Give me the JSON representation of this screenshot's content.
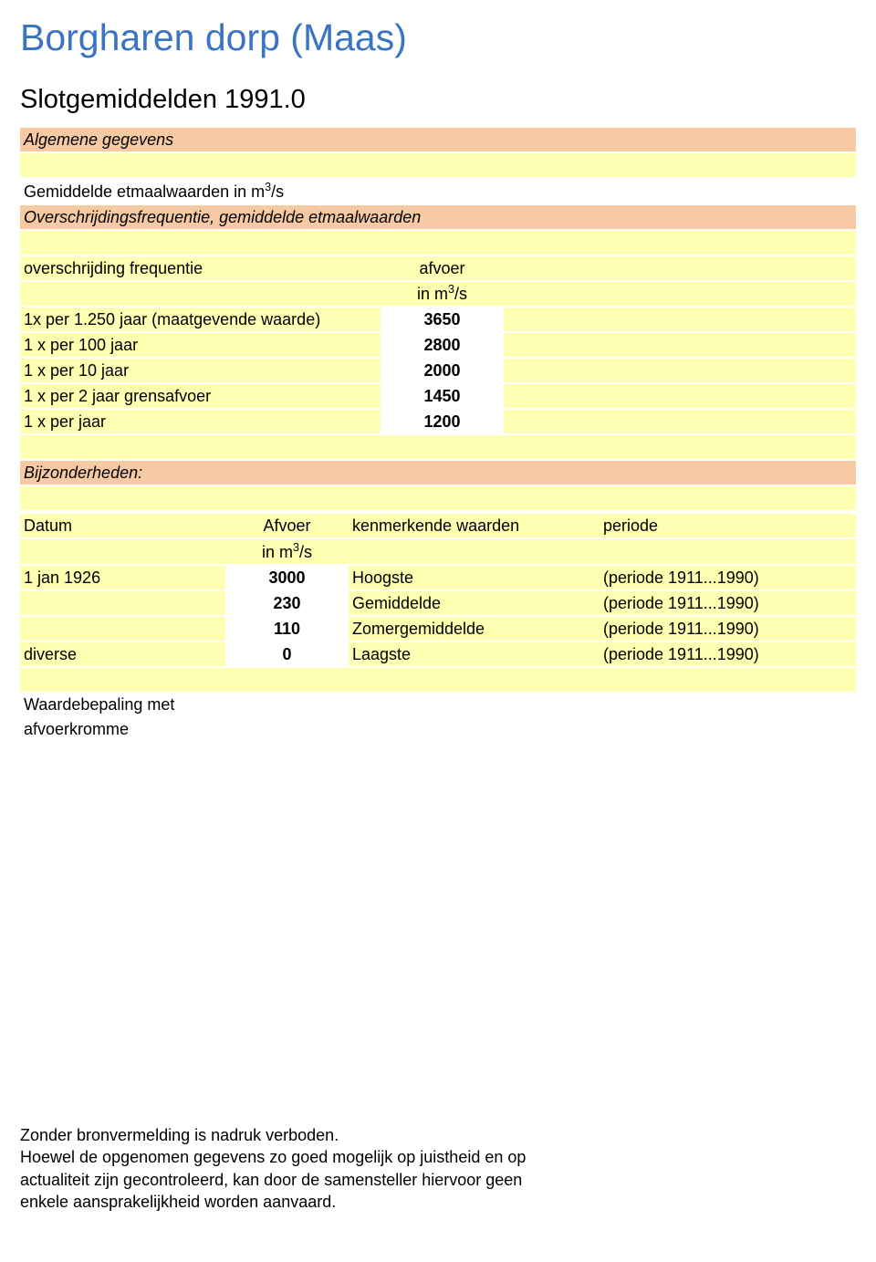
{
  "title": "Borgharen dorp (Maas)",
  "subtitle": "Slotgemiddelden 1991.0",
  "section_general": "Algemene gegevens",
  "line_gemiddelde": "Gemiddelde etmaalwaarden in m",
  "section_overschrijding": "Overschrijdingsfrequentie, gemiddelde etmaalwaarden",
  "freq_header_left": "overschrijding frequentie",
  "freq_header_mid_top": "afvoer",
  "freq_header_mid_bot": "in m",
  "freq_rows": [
    {
      "label": "1x per 1.250 jaar (maatgevende waarde)",
      "value": "3650"
    },
    {
      "label": "1 x per 100 jaar",
      "value": "2800"
    },
    {
      "label": "1 x per 10 jaar",
      "value": "2000"
    },
    {
      "label": "1 x per 2 jaar grensafvoer",
      "value": "1450"
    },
    {
      "label": "1 x per jaar",
      "value": "1200"
    }
  ],
  "section_bijzonder": "Bijzonderheden:",
  "table_header": {
    "c1": "Datum",
    "c2_top": "Afvoer",
    "c2_bot": "in m",
    "c3": "kenmerkende waarden",
    "c4": "periode"
  },
  "table_rows": [
    {
      "c1": "1 jan 1926",
      "c2": "3000",
      "c3": "Hoogste",
      "c4": "(periode 1911...1990)"
    },
    {
      "c1": "",
      "c2": "230",
      "c3": "Gemiddelde",
      "c4": "(periode 1911...1990)"
    },
    {
      "c1": "",
      "c2": "110",
      "c3": "Zomergemiddelde",
      "c4": "(periode 1911...1990)"
    },
    {
      "c1": "diverse",
      "c2": "0",
      "c3": "Laagste",
      "c4": "(periode 1911...1990)"
    }
  ],
  "waardebepaling_l1": "Waardebepaling met",
  "waardebepaling_l2": "afvoerkromme",
  "footer_l1": "Zonder bronvermelding is nadruk verboden.",
  "footer_l2": "Hoewel de opgenomen gegevens zo goed mogelijk op juistheid en op",
  "footer_l3": "actualiteit zijn gecontroleerd, kan door de samensteller hiervoor geen",
  "footer_l4": "enkele aansprakelijkheid worden aanvaard.",
  "unit_sup": "3",
  "unit_suffix": "/s",
  "colors": {
    "title": "#3b74c4",
    "bar_orange": "#f7caa3",
    "bar_yellow": "#ffffb3",
    "bg": "#ffffff",
    "text": "#000000"
  }
}
